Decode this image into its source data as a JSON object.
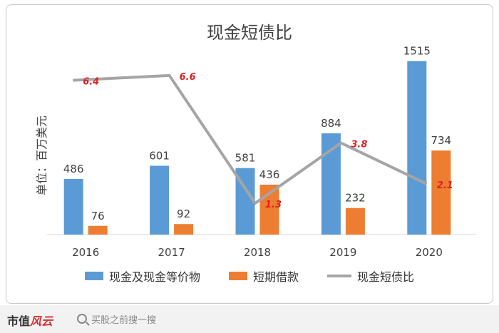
{
  "chart_data": {
    "type": "bar",
    "title": "现金短债比",
    "ylabel": "单位：百万美元",
    "categories": [
      "2016",
      "2017",
      "2018",
      "2019",
      "2020"
    ],
    "ylim": [
      0,
      1600
    ],
    "series": [
      {
        "name": "现金及现金等价物",
        "type": "bar",
        "color": "#5b9bd5",
        "values": [
          486,
          601,
          581,
          884,
          1515
        ]
      },
      {
        "name": "短期借款",
        "type": "bar",
        "color": "#ed7d31",
        "values": [
          76,
          92,
          436,
          232,
          734
        ]
      },
      {
        "name": "现金短债比",
        "type": "line",
        "color": "#a5a5a5",
        "values": [
          6.4,
          6.6,
          1.3,
          3.8,
          2.1
        ],
        "ylim": [
          0,
          7.6
        ]
      }
    ],
    "legend_position": "bottom",
    "grid": false
  },
  "footer": {
    "brand_main": "市值",
    "brand_accent": "风云",
    "search_text": "买股之前搜一搜"
  }
}
